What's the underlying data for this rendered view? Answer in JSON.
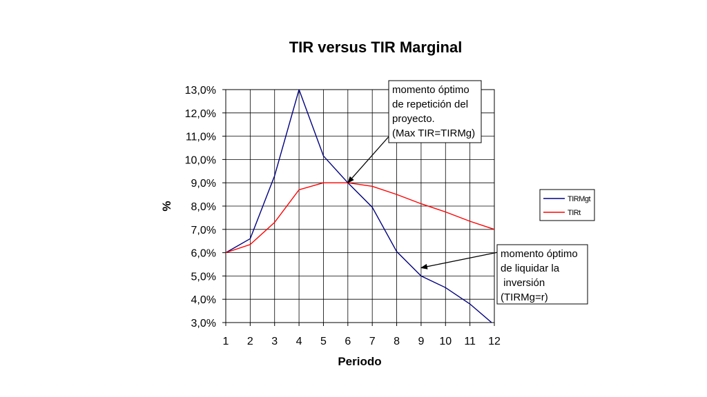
{
  "chart_data": {
    "type": "line",
    "title": "TIR versus TIR Marginal",
    "xlabel": "Periodo",
    "ylabel": "%",
    "x": [
      1,
      2,
      3,
      4,
      5,
      6,
      7,
      8,
      9,
      10,
      11,
      12
    ],
    "xlim": [
      1,
      12
    ],
    "ylim": [
      3.0,
      13.0
    ],
    "y_ticks": [
      "3,0%",
      "4,0%",
      "5,0%",
      "6,0%",
      "7,0%",
      "8,0%",
      "9,0%",
      "10,0%",
      "11,0%",
      "12,0%",
      "13,0%"
    ],
    "grid": true,
    "legend_position": "right",
    "series": [
      {
        "name": "TIRMgt",
        "color": "#000080",
        "values": [
          6.0,
          6.6,
          9.3,
          13.0,
          10.15,
          9.0,
          7.95,
          6.05,
          5.0,
          4.5,
          3.8,
          2.9
        ]
      },
      {
        "name": "TIRt",
        "color": "#ff0000",
        "values": [
          6.0,
          6.35,
          7.3,
          8.7,
          9.0,
          9.0,
          8.85,
          8.5,
          8.1,
          7.75,
          7.35,
          7.0
        ]
      }
    ],
    "annotations": [
      {
        "lines": [
          "momento óptimo",
          "de repetición del",
          "proyecto.",
          "(Max TIR=TIRMg)"
        ],
        "x": 6,
        "y": 9.0
      },
      {
        "lines": [
          "momento óptimo",
          "de liquidar la",
          " inversión",
          "(TIRMg=r)"
        ],
        "x": 9,
        "y": 5.35
      }
    ]
  }
}
